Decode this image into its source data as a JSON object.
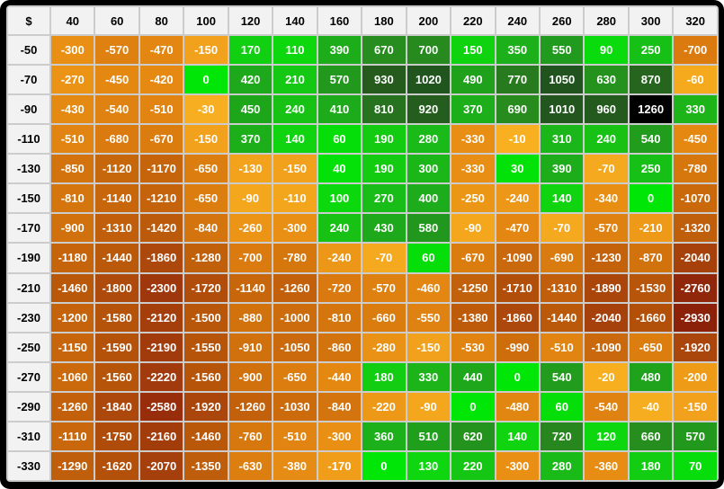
{
  "chart_data": {
    "type": "heatmap",
    "corner_label": "$",
    "x_categories": [
      "40",
      "60",
      "80",
      "100",
      "120",
      "140",
      "160",
      "180",
      "200",
      "220",
      "240",
      "260",
      "280",
      "300",
      "320"
    ],
    "y_categories": [
      "-50",
      "-70",
      "-90",
      "-110",
      "-130",
      "-150",
      "-170",
      "-190",
      "-210",
      "-230",
      "-250",
      "-270",
      "-290",
      "-310",
      "-330"
    ],
    "values": [
      [
        -300,
        -570,
        -470,
        -150,
        170,
        110,
        390,
        670,
        700,
        150,
        350,
        550,
        90,
        250,
        -700
      ],
      [
        -270,
        -450,
        -420,
        0,
        420,
        210,
        570,
        930,
        1020,
        490,
        770,
        1050,
        630,
        870,
        -60
      ],
      [
        -430,
        -540,
        -510,
        -30,
        450,
        240,
        410,
        810,
        920,
        370,
        690,
        1010,
        960,
        1260,
        330
      ],
      [
        -510,
        -680,
        -670,
        -150,
        370,
        140,
        60,
        190,
        280,
        -330,
        -10,
        310,
        240,
        540,
        -450
      ],
      [
        -850,
        -1120,
        -1170,
        -650,
        -130,
        -150,
        40,
        190,
        300,
        -330,
        30,
        390,
        -70,
        250,
        -780
      ],
      [
        -810,
        -1140,
        -1210,
        -650,
        -90,
        -110,
        100,
        270,
        400,
        -250,
        -240,
        140,
        -340,
        0,
        -1070
      ],
      [
        -900,
        -1310,
        -1420,
        -840,
        -260,
        -300,
        240,
        430,
        580,
        -90,
        -470,
        -70,
        -570,
        -210,
        -1320
      ],
      [
        -1180,
        -1440,
        -1860,
        -1280,
        -700,
        -780,
        -240,
        -70,
        60,
        -670,
        -1090,
        -690,
        -1230,
        -870,
        -2040
      ],
      [
        -1460,
        -1800,
        -2300,
        -1720,
        -1140,
        -1260,
        -720,
        -570,
        -460,
        -1250,
        -1710,
        -1310,
        -1890,
        -1530,
        -2760
      ],
      [
        -1200,
        -1580,
        -2120,
        -1500,
        -880,
        -1000,
        -810,
        -660,
        -550,
        -1380,
        -1860,
        -1440,
        -2040,
        -1660,
        -2930
      ],
      [
        -1150,
        -1590,
        -2190,
        -1550,
        -910,
        -1050,
        -860,
        -280,
        -150,
        -530,
        -990,
        -510,
        -1090,
        -650,
        -1920
      ],
      [
        -1060,
        -1560,
        -2220,
        -1560,
        -900,
        -650,
        -440,
        180,
        330,
        440,
        0,
        540,
        -20,
        480,
        -200
      ],
      [
        -1260,
        -1840,
        -2580,
        -1920,
        -1260,
        -1030,
        -840,
        -220,
        -90,
        0,
        -480,
        60,
        -540,
        -40,
        -150
      ],
      [
        -1110,
        -1750,
        -2160,
        -1460,
        -760,
        -510,
        -300,
        360,
        510,
        620,
        140,
        720,
        120,
        660,
        570
      ],
      [
        -1290,
        -1620,
        -2070,
        -1350,
        -630,
        -380,
        -170,
        0,
        130,
        220,
        -300,
        280,
        -360,
        180,
        70
      ]
    ],
    "value_range": [
      -2930,
      1260
    ],
    "legend": "none",
    "grid": "on",
    "colorscale": {
      "max_cell_color": "#000000",
      "cell_text_color": "#ffffff",
      "header_bg": "#f2f2f2",
      "header_text": "#000000",
      "gridline_color": "#cccccc",
      "frame_color": "#000000",
      "positive_stops": [
        [
          0,
          "#00E606"
        ],
        [
          150,
          "#10D310"
        ],
        [
          300,
          "#1BB719"
        ],
        [
          500,
          "#1FA01C"
        ],
        [
          700,
          "#278A1E"
        ],
        [
          900,
          "#265E1E"
        ],
        [
          1100,
          "#1E4F1E"
        ]
      ],
      "negative_stops": [
        [
          0,
          "#F8B121"
        ],
        [
          300,
          "#E99014"
        ],
        [
          600,
          "#DE7F10"
        ],
        [
          900,
          "#D1710D"
        ],
        [
          1200,
          "#C4630B"
        ],
        [
          1600,
          "#B4520A"
        ],
        [
          2000,
          "#A7420B"
        ],
        [
          2400,
          "#9C330C"
        ],
        [
          2930,
          "#8C2109"
        ]
      ]
    }
  }
}
